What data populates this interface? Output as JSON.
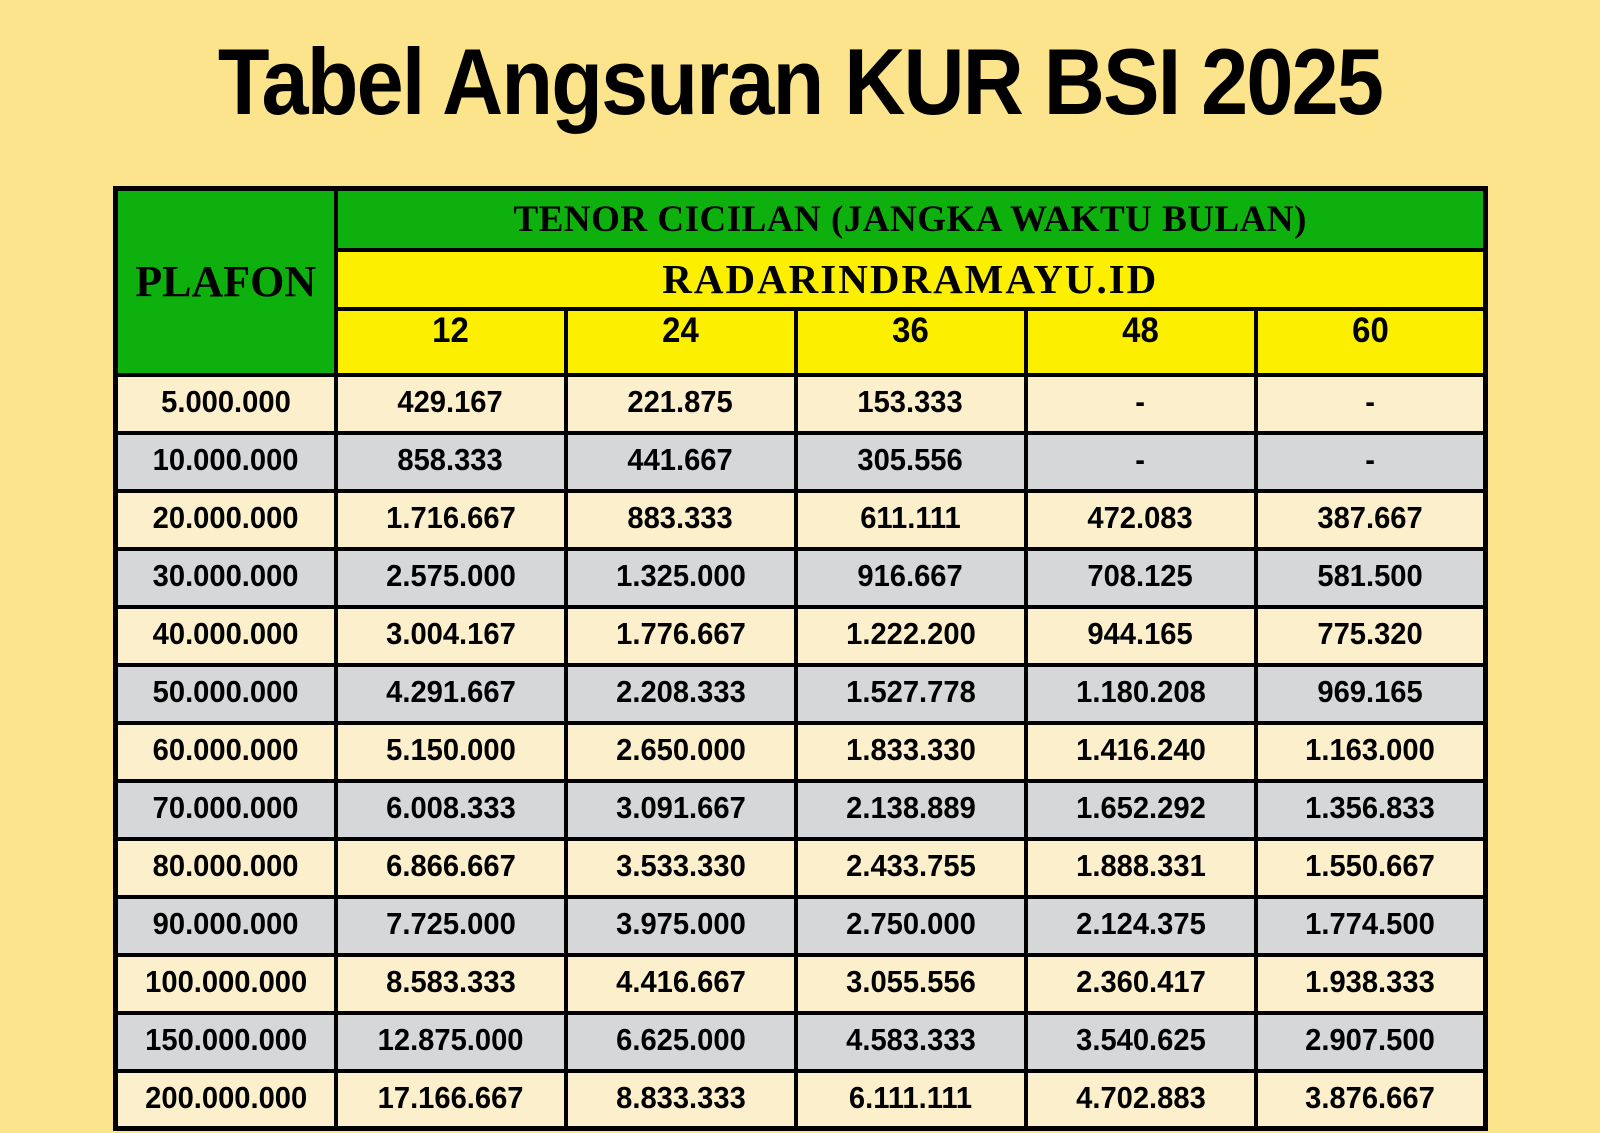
{
  "page": {
    "title": "Tabel Angsuran KUR BSI 2025",
    "background_color": "#FBE48C"
  },
  "colors": {
    "header_green": "#0DB00D",
    "header_yellow": "#FCF000",
    "row_cream": "#FCEFCC",
    "row_gray": "#D6D7D8",
    "border": "#000000",
    "text": "#000000"
  },
  "table": {
    "header": {
      "plafon_label": "PLAFON",
      "tenor_label": "TENOR CICILAN (JANGKA WAKTU BULAN)",
      "source_label": "RADARINDRAMAYU.ID",
      "tenor_columns": [
        "12",
        "24",
        "36",
        "48",
        "60"
      ]
    },
    "rows": [
      {
        "plafon": "5.000.000",
        "values": [
          "429.167",
          "221.875",
          "153.333",
          "-",
          "-"
        ]
      },
      {
        "plafon": "10.000.000",
        "values": [
          "858.333",
          "441.667",
          "305.556",
          "-",
          "-"
        ]
      },
      {
        "plafon": "20.000.000",
        "values": [
          "1.716.667",
          "883.333",
          "611.111",
          "472.083",
          "387.667"
        ]
      },
      {
        "plafon": "30.000.000",
        "values": [
          "2.575.000",
          "1.325.000",
          "916.667",
          "708.125",
          "581.500"
        ]
      },
      {
        "plafon": "40.000.000",
        "values": [
          "3.004.167",
          "1.776.667",
          "1.222.200",
          "944.165",
          "775.320"
        ]
      },
      {
        "plafon": "50.000.000",
        "values": [
          "4.291.667",
          "2.208.333",
          "1.527.778",
          "1.180.208",
          "969.165"
        ]
      },
      {
        "plafon": "60.000.000",
        "values": [
          "5.150.000",
          "2.650.000",
          "1.833.330",
          "1.416.240",
          "1.163.000"
        ]
      },
      {
        "plafon": "70.000.000",
        "values": [
          "6.008.333",
          "3.091.667",
          "2.138.889",
          "1.652.292",
          "1.356.833"
        ]
      },
      {
        "plafon": "80.000.000",
        "values": [
          "6.866.667",
          "3.533.330",
          "2.433.755",
          "1.888.331",
          "1.550.667"
        ]
      },
      {
        "plafon": "90.000.000",
        "values": [
          "7.725.000",
          "3.975.000",
          "2.750.000",
          "2.124.375",
          "1.774.500"
        ]
      },
      {
        "plafon": "100.000.000",
        "values": [
          "8.583.333",
          "4.416.667",
          "3.055.556",
          "2.360.417",
          "1.938.333"
        ]
      },
      {
        "plafon": "150.000.000",
        "values": [
          "12.875.000",
          "6.625.000",
          "4.583.333",
          "3.540.625",
          "2.907.500"
        ]
      },
      {
        "plafon": "200.000.000",
        "values": [
          "17.166.667",
          "8.833.333",
          "6.111.111",
          "4.702.883",
          "3.876.667"
        ]
      }
    ]
  },
  "chart_data": {
    "type": "table",
    "title": "Tabel Angsuran KUR BSI 2025",
    "column_group_label": "TENOR CICILAN (JANGKA WAKTU BULAN)",
    "source": "RADARINDRAMAYU.ID",
    "columns": [
      "PLAFON",
      "12",
      "24",
      "36",
      "48",
      "60"
    ],
    "rows": [
      [
        5000000,
        429167,
        221875,
        153333,
        null,
        null
      ],
      [
        10000000,
        858333,
        441667,
        305556,
        null,
        null
      ],
      [
        20000000,
        1716667,
        883333,
        611111,
        472083,
        387667
      ],
      [
        30000000,
        2575000,
        1325000,
        916667,
        708125,
        581500
      ],
      [
        40000000,
        3004167,
        1776667,
        1222200,
        944165,
        775320
      ],
      [
        50000000,
        4291667,
        2208333,
        1527778,
        1180208,
        969165
      ],
      [
        60000000,
        5150000,
        2650000,
        1833330,
        1416240,
        1163000
      ],
      [
        70000000,
        6008333,
        3091667,
        2138889,
        1652292,
        1356833
      ],
      [
        80000000,
        6866667,
        3533330,
        2433755,
        1888331,
        1550667
      ],
      [
        90000000,
        7725000,
        3975000,
        2750000,
        2124375,
        1774500
      ],
      [
        100000000,
        8583333,
        4416667,
        3055556,
        2360417,
        1938333
      ],
      [
        150000000,
        12875000,
        6625000,
        4583333,
        3540625,
        2907500
      ],
      [
        200000000,
        17166667,
        8833333,
        6111111,
        4702883,
        3876667
      ]
    ]
  }
}
